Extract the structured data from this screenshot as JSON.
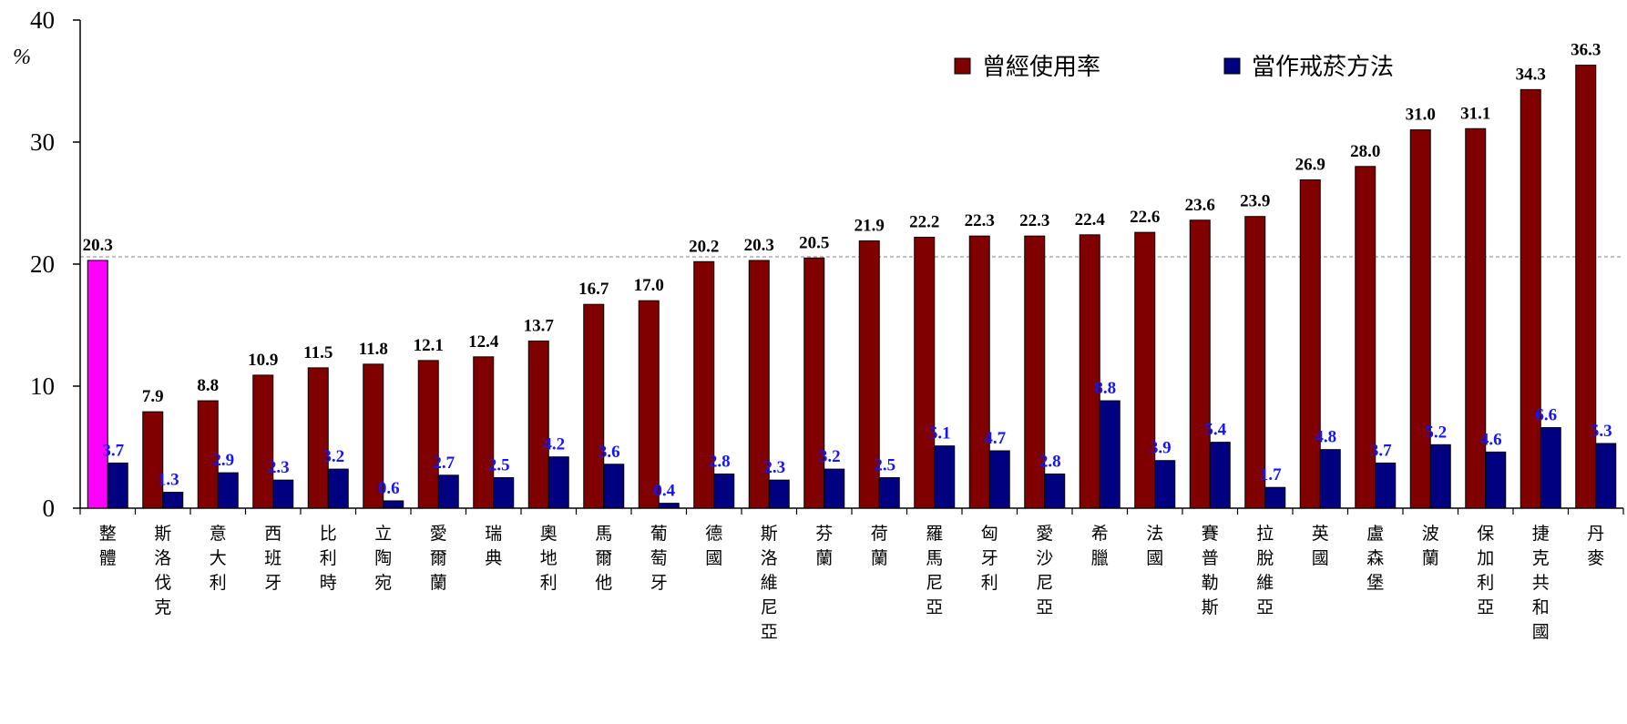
{
  "chart_data": {
    "type": "bar",
    "ylabel": "%",
    "ylim": [
      0,
      40
    ],
    "yticks": [
      0,
      10,
      20,
      30,
      40
    ],
    "reference_line": 20.6,
    "legend_position": "top-right",
    "categories": [
      "整體",
      "斯洛伐克",
      "意大利",
      "西班牙",
      "比利時",
      "立陶宛",
      "愛爾蘭",
      "瑞典",
      "奧地利",
      "馬爾他",
      "葡萄牙",
      "德國",
      "斯洛維尼亞",
      "芬蘭",
      "荷蘭",
      "羅馬尼亞",
      "匈牙利",
      "愛沙尼亞",
      "希臘",
      "法國",
      "賽普勒斯",
      "拉脫維亞",
      "英國",
      "盧森堡",
      "波蘭",
      "保加利亞",
      "捷克共和國",
      "丹麥"
    ],
    "category_display": [
      "整體",
      "斯洛伐克",
      "意大利",
      "西班牙",
      "比利時",
      "立陶宛",
      "愛爾蘭",
      "瑞典",
      "奧地利",
      "馬爾他",
      "葡萄牙",
      "德國",
      "斯洛維尼亞",
      "芬蘭",
      "荷蘭",
      "羅馬尼亞",
      "匈牙利",
      "愛沙尼亞",
      "希臘",
      "法國",
      "賽普勒斯",
      "拉脫維亞",
      "英國",
      "盧森堡",
      "波蘭",
      "保加利亞",
      "捷克共和國",
      "丹麥"
    ],
    "series": [
      {
        "name": "曾經使用率",
        "color": "#800000",
        "highlight_color": "#ff00ff",
        "values": [
          20.3,
          7.9,
          8.8,
          10.9,
          11.5,
          11.8,
          12.1,
          12.4,
          13.7,
          16.7,
          17.0,
          20.2,
          20.3,
          20.5,
          21.9,
          22.2,
          22.3,
          22.3,
          22.4,
          22.6,
          23.6,
          23.9,
          26.9,
          28.0,
          31.0,
          31.1,
          34.3,
          36.3
        ],
        "labels": [
          "20.3",
          "7.9",
          "8.8",
          "10.9",
          "11.5",
          "11.8",
          "12.1",
          "12.4",
          "13.7",
          "16.7",
          "17.0",
          "20.2",
          "20.3",
          "20.5",
          "21.9",
          "22.2",
          "22.3",
          "22.3",
          "22.4",
          "22.6",
          "23.6",
          "23.9",
          "26.9",
          "28.0",
          "31.0",
          "31.1",
          "34.3",
          "36.3"
        ]
      },
      {
        "name": "當作戒菸方法",
        "color": "#000080",
        "values": [
          3.7,
          1.3,
          2.9,
          2.3,
          3.2,
          0.6,
          2.7,
          2.5,
          4.2,
          3.6,
          0.4,
          2.8,
          2.3,
          3.2,
          2.5,
          5.1,
          4.7,
          2.8,
          8.8,
          3.9,
          5.4,
          1.7,
          4.8,
          3.7,
          5.2,
          4.6,
          6.6,
          5.3
        ],
        "labels": [
          "3.7",
          "1.3",
          "2.9",
          "2.3",
          "3.2",
          "0.6",
          "2.7",
          "2.5",
          "4.2",
          "3.6",
          "0.4",
          "2.8",
          "2.3",
          "3.2",
          "2.5",
          "5.1",
          "4.7",
          "2.8",
          "8.8",
          "3.9",
          "5.4",
          "1.7",
          "4.8",
          "3.7",
          "5.2",
          "4.6",
          "6.6",
          "5.3"
        ]
      }
    ]
  }
}
